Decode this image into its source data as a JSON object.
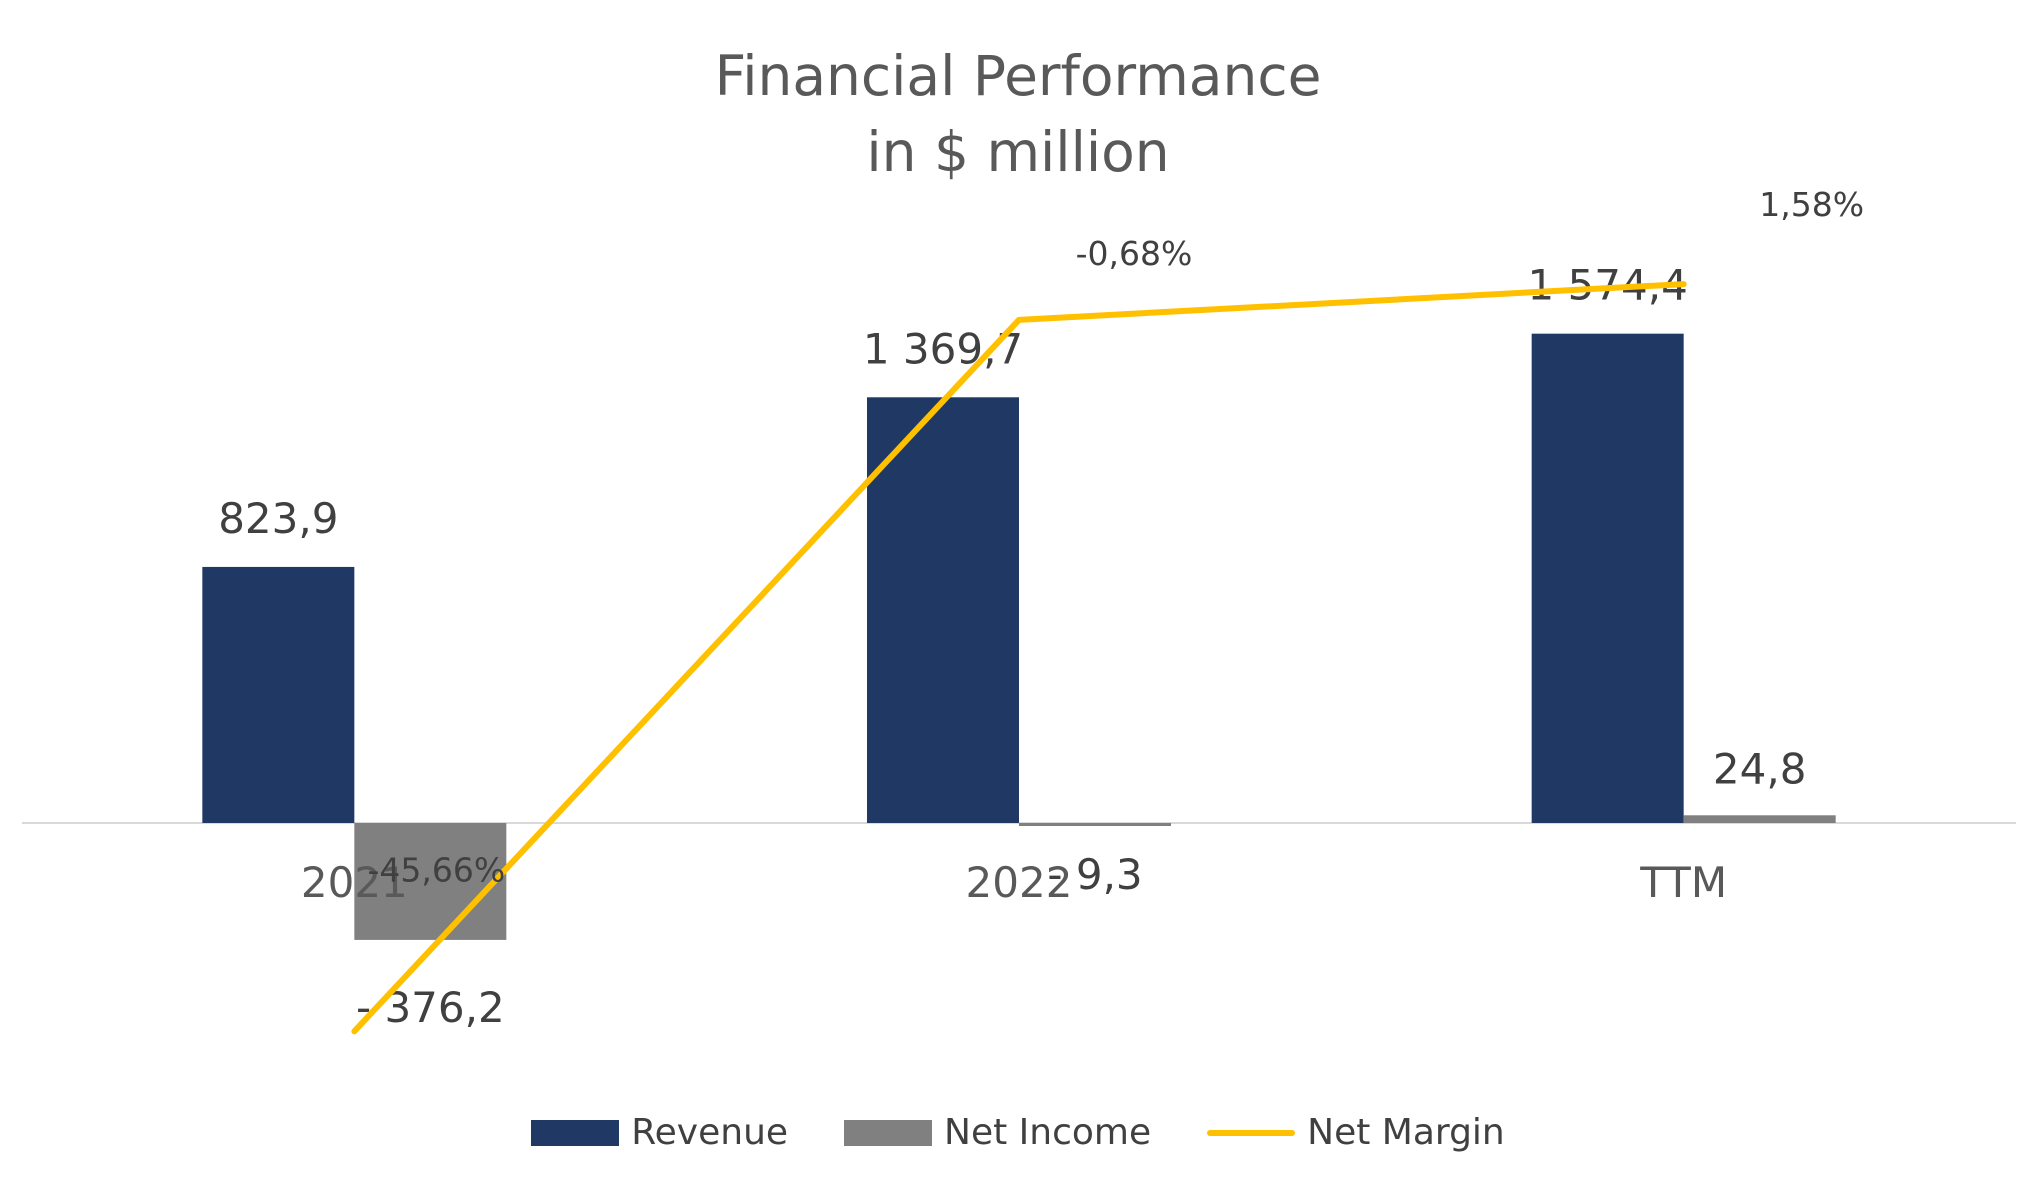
{
  "chart_data": {
    "type": "bar",
    "title": "Financial Performance",
    "subtitle": "in $ million",
    "categories": [
      "2021",
      "2022",
      "TTM"
    ],
    "series": [
      {
        "name": "Revenue",
        "kind": "bar",
        "color": "#203864",
        "values": [
          823.9,
          1369.7,
          1574.4
        ],
        "labels": [
          "823,9",
          "1 369,7",
          "1 574,4"
        ]
      },
      {
        "name": "Net Income",
        "kind": "bar",
        "color": "#808080",
        "values": [
          -376.2,
          -9.3,
          24.8
        ],
        "labels": [
          "- 376,2",
          "- 9,3",
          "24,8"
        ]
      },
      {
        "name": "Net Margin",
        "kind": "line",
        "axis": "secondary",
        "color": "#FFC000",
        "values": [
          -45.66,
          -0.68,
          1.58
        ],
        "labels": [
          "-45,66%",
          "-0,68%",
          "1,58%"
        ]
      }
    ],
    "ylim": [
      -400,
      1700
    ],
    "y2lim": [
      -55,
      5
    ],
    "grid": false,
    "legend": "bottom"
  }
}
